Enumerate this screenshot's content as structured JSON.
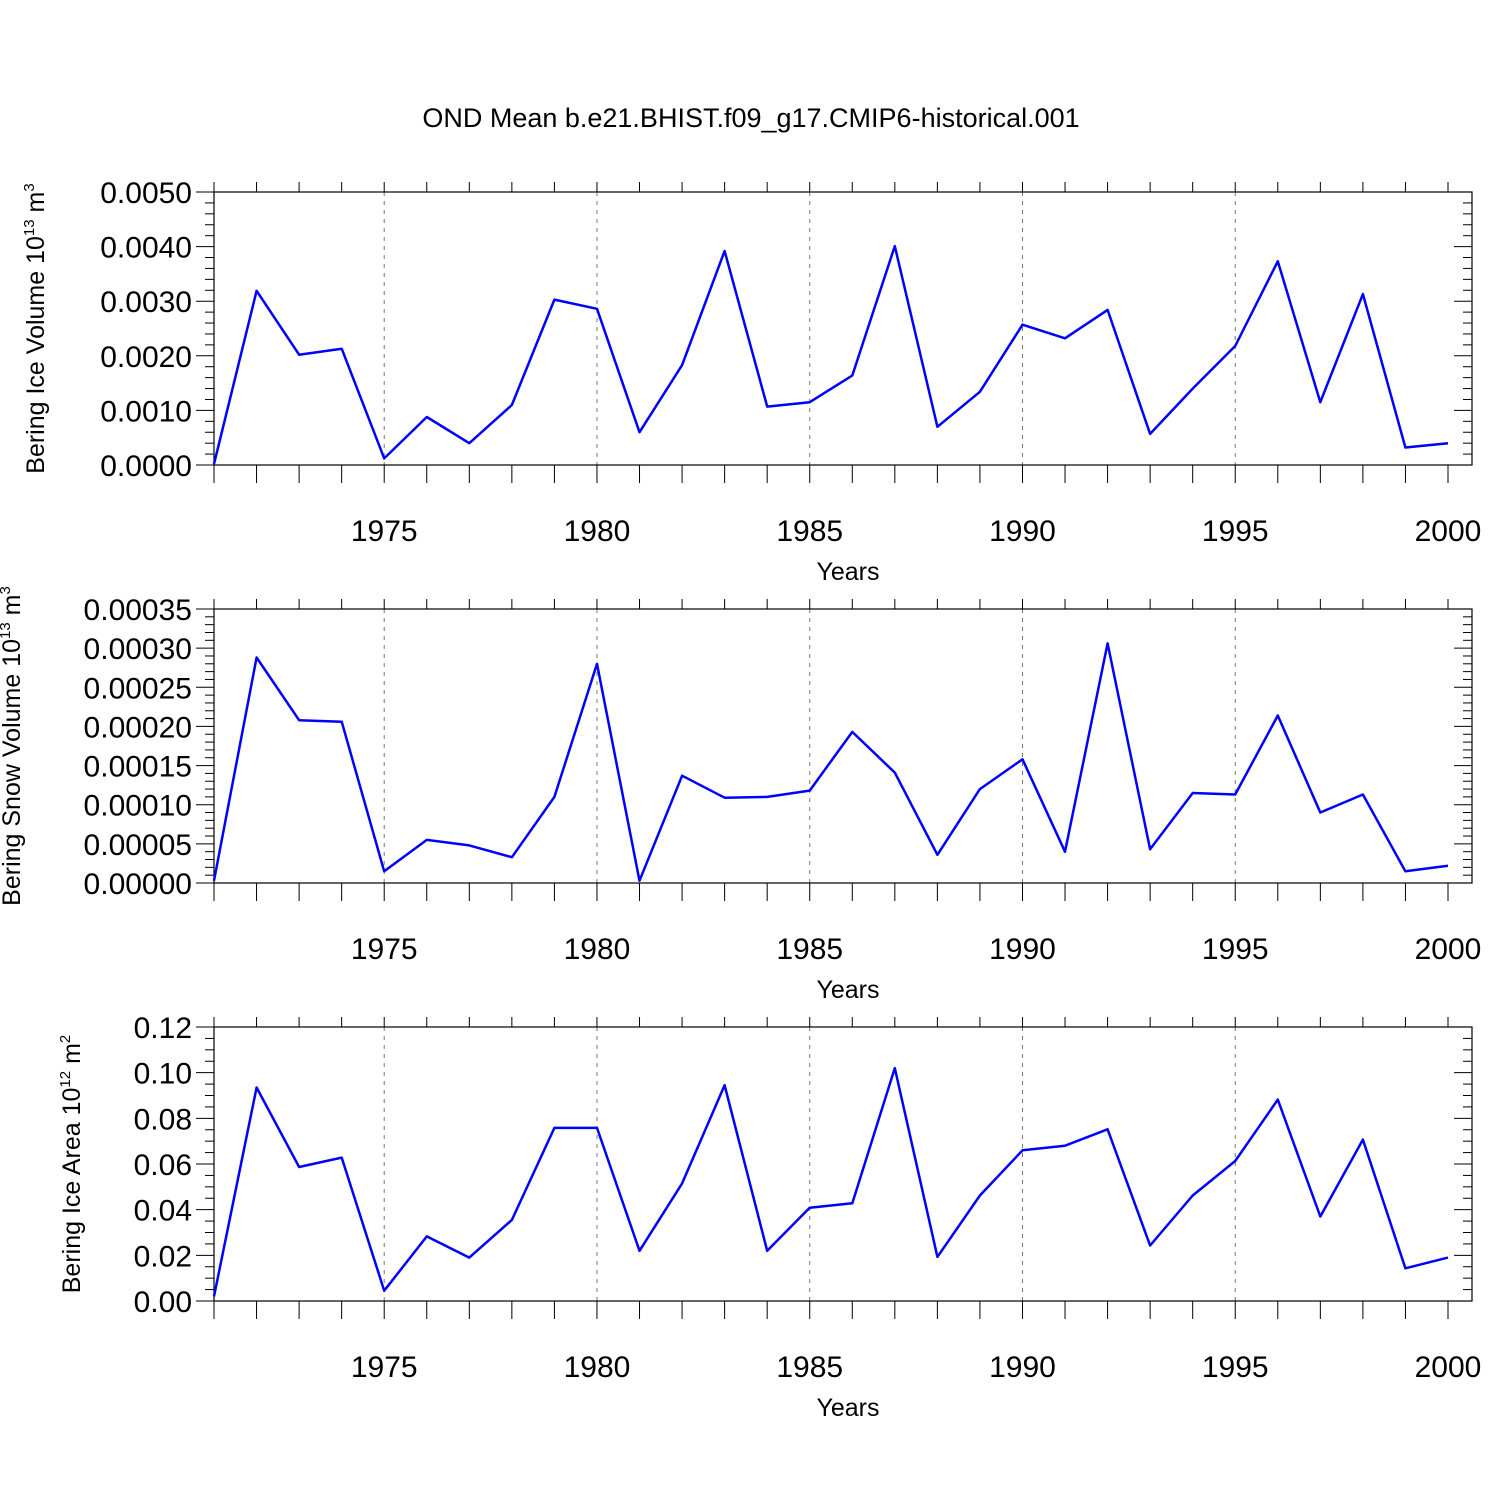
{
  "chart_data": {
    "type": "line",
    "title": "OND Mean b.e21.BHIST.f09_g17.CMIP6-historical.001",
    "series_color": "#0000ff",
    "x": [
      1971,
      1972,
      1973,
      1974,
      1975,
      1976,
      1977,
      1978,
      1979,
      1980,
      1981,
      1982,
      1983,
      1984,
      1985,
      1986,
      1987,
      1988,
      1989,
      1990,
      1991,
      1992,
      1993,
      1994,
      1995,
      1996,
      1997,
      1998,
      1999,
      2000
    ],
    "xlim": [
      1971,
      2000
    ],
    "xticks": [
      1975,
      1980,
      1985,
      1990,
      1995,
      2000
    ],
    "xtick_labels": [
      "1975",
      "1980",
      "1985",
      "1990",
      "1995",
      "2000"
    ],
    "grid": "vertical dashed at major x ticks",
    "panels": [
      {
        "ylabel": "Bering Ice Volume 10",
        "ylabel_exp": "13",
        "ylabel_unit": " m",
        "ylabel_unit_exp": "3",
        "xlabel": "Years",
        "ylim": [
          0,
          0.005
        ],
        "yticks": [
          0,
          0.001,
          0.002,
          0.003,
          0.004,
          0.005
        ],
        "ytick_labels": [
          "0.0000",
          "0.0010",
          "0.0020",
          "0.0030",
          "0.0040",
          "0.0050"
        ],
        "minor_per_major": 5,
        "values": [
          2e-05,
          0.00319,
          0.00202,
          0.00213,
          0.00012,
          0.00088,
          0.0004,
          0.0011,
          0.00303,
          0.00286,
          0.0006,
          0.00183,
          0.00392,
          0.00107,
          0.00115,
          0.00164,
          0.00401,
          0.0007,
          0.00134,
          0.00257,
          0.00232,
          0.00284,
          0.00057,
          0.0014,
          0.00218,
          0.00373,
          0.00115,
          0.00313,
          0.00032,
          0.0004
        ]
      },
      {
        "ylabel": "Bering Snow Volume 10",
        "ylabel_exp": "13",
        "ylabel_unit": " m",
        "ylabel_unit_exp": "3",
        "xlabel": "Years",
        "ylim": [
          0,
          0.00035
        ],
        "yticks": [
          0,
          5e-05,
          0.0001,
          0.00015,
          0.0002,
          0.00025,
          0.0003,
          0.00035
        ],
        "ytick_labels": [
          "0.00000",
          "0.00005",
          "0.00010",
          "0.00015",
          "0.00020",
          "0.00025",
          "0.00030",
          "0.00035"
        ],
        "minor_per_major": 5,
        "values": [
          3e-06,
          0.000288,
          0.000208,
          0.000206,
          1.5e-05,
          5.5e-05,
          4.8e-05,
          3.3e-05,
          0.00011,
          0.00028,
          3e-06,
          0.000137,
          0.000109,
          0.00011,
          0.000118,
          0.000193,
          0.000141,
          3.6e-05,
          0.00012,
          0.000158,
          4e-05,
          0.000306,
          4.3e-05,
          0.000115,
          0.000113,
          0.000214,
          9e-05,
          0.000113,
          1.5e-05,
          2.2e-05
        ]
      },
      {
        "ylabel": "Bering Ice Area 10",
        "ylabel_exp": "12",
        "ylabel_unit": " m",
        "ylabel_unit_exp": "2",
        "xlabel": "Years",
        "ylim": [
          0,
          0.12
        ],
        "yticks": [
          0,
          0.02,
          0.04,
          0.06,
          0.08,
          0.1,
          0.12
        ],
        "ytick_labels": [
          "0.00",
          "0.02",
          "0.04",
          "0.06",
          "0.08",
          "0.10",
          "0.12"
        ],
        "minor_per_major": 4,
        "values": [
          0.002,
          0.0935,
          0.0587,
          0.0628,
          0.0045,
          0.0283,
          0.019,
          0.0355,
          0.0758,
          0.0758,
          0.022,
          0.0515,
          0.0945,
          0.022,
          0.0408,
          0.0428,
          0.102,
          0.0193,
          0.0462,
          0.066,
          0.068,
          0.0752,
          0.0243,
          0.0462,
          0.0613,
          0.0882,
          0.037,
          0.0707,
          0.0143,
          0.019
        ]
      }
    ]
  }
}
